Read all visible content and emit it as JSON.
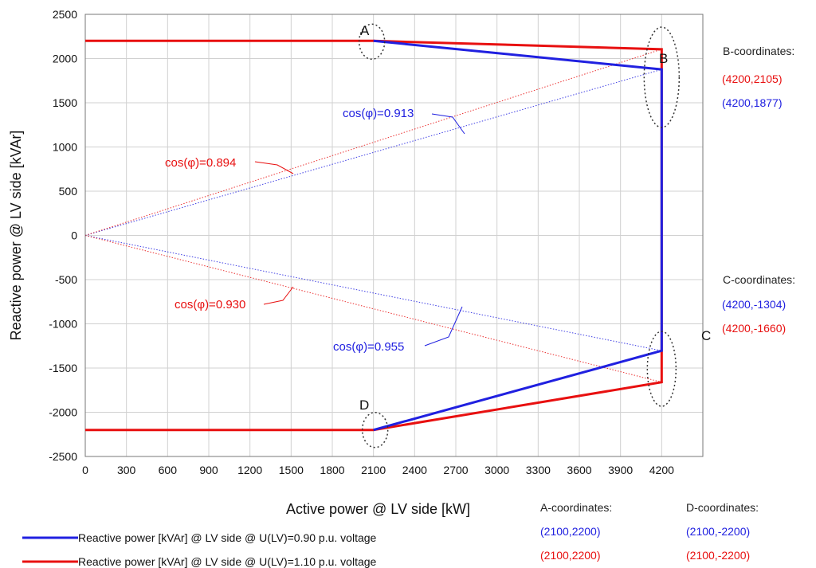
{
  "chart_data": {
    "type": "line",
    "title": "",
    "xlabel": "Active power @ LV side [kW]",
    "ylabel": "Reactive power @ LV side [kVAr]",
    "xlim": [
      0,
      4500
    ],
    "ylim": [
      -2500,
      2500
    ],
    "xticks": [
      0,
      300,
      600,
      900,
      1200,
      1500,
      1800,
      2100,
      2400,
      2700,
      3000,
      3300,
      3600,
      3900,
      4200
    ],
    "yticks": [
      2500,
      2000,
      1500,
      1000,
      500,
      0,
      -500,
      -1000,
      -1500,
      -2000,
      -2500
    ],
    "grid": true,
    "colors": {
      "blue": "#2020e0",
      "red": "#e81010"
    },
    "series": [
      {
        "name": "Reactive power [kVAr] @ LV side @ U(LV)=0.90 p.u. voltage",
        "color": "blue",
        "points": [
          [
            2100,
            2200
          ],
          [
            4200,
            1877
          ],
          [
            4200,
            -1304
          ],
          [
            2100,
            -2200
          ]
        ]
      },
      {
        "name": "Reactive power [kVAr] @ LV side @ U(LV)=1.10 p.u. voltage",
        "color": "red",
        "points": [
          [
            0,
            2200
          ],
          [
            2100,
            2200
          ],
          [
            4200,
            2105
          ],
          [
            4200,
            -1660
          ],
          [
            2100,
            -2200
          ],
          [
            0,
            -2200
          ]
        ]
      }
    ],
    "power_factor_lines": [
      {
        "label": "cos(φ)=0.913",
        "color": "blue",
        "to": [
          4200,
          1877
        ]
      },
      {
        "label": "cos(φ)=0.894",
        "color": "red",
        "to": [
          4200,
          2105
        ]
      },
      {
        "label": "cos(φ)=0.955",
        "color": "blue",
        "to": [
          4200,
          -1304
        ]
      },
      {
        "label": "cos(φ)=0.930",
        "color": "red",
        "to": [
          4200,
          -1660
        ]
      }
    ],
    "point_labels": [
      "A",
      "B",
      "C",
      "D"
    ],
    "coordinates": {
      "A": {
        "title": "A-coordinates:",
        "blue": "(2100,2200)",
        "red": "(2100,2200)"
      },
      "B": {
        "title": "B-coordinates:",
        "red": "(4200,2105)",
        "blue": "(4200,1877)"
      },
      "C": {
        "title": "C-coordinates:",
        "blue": "(4200,-1304)",
        "red": "(4200,-1660)"
      },
      "D": {
        "title": "D-coordinates:",
        "blue": "(2100,-2200)",
        "red": "(2100,-2200)"
      }
    },
    "legend_position": "bottom-left"
  }
}
